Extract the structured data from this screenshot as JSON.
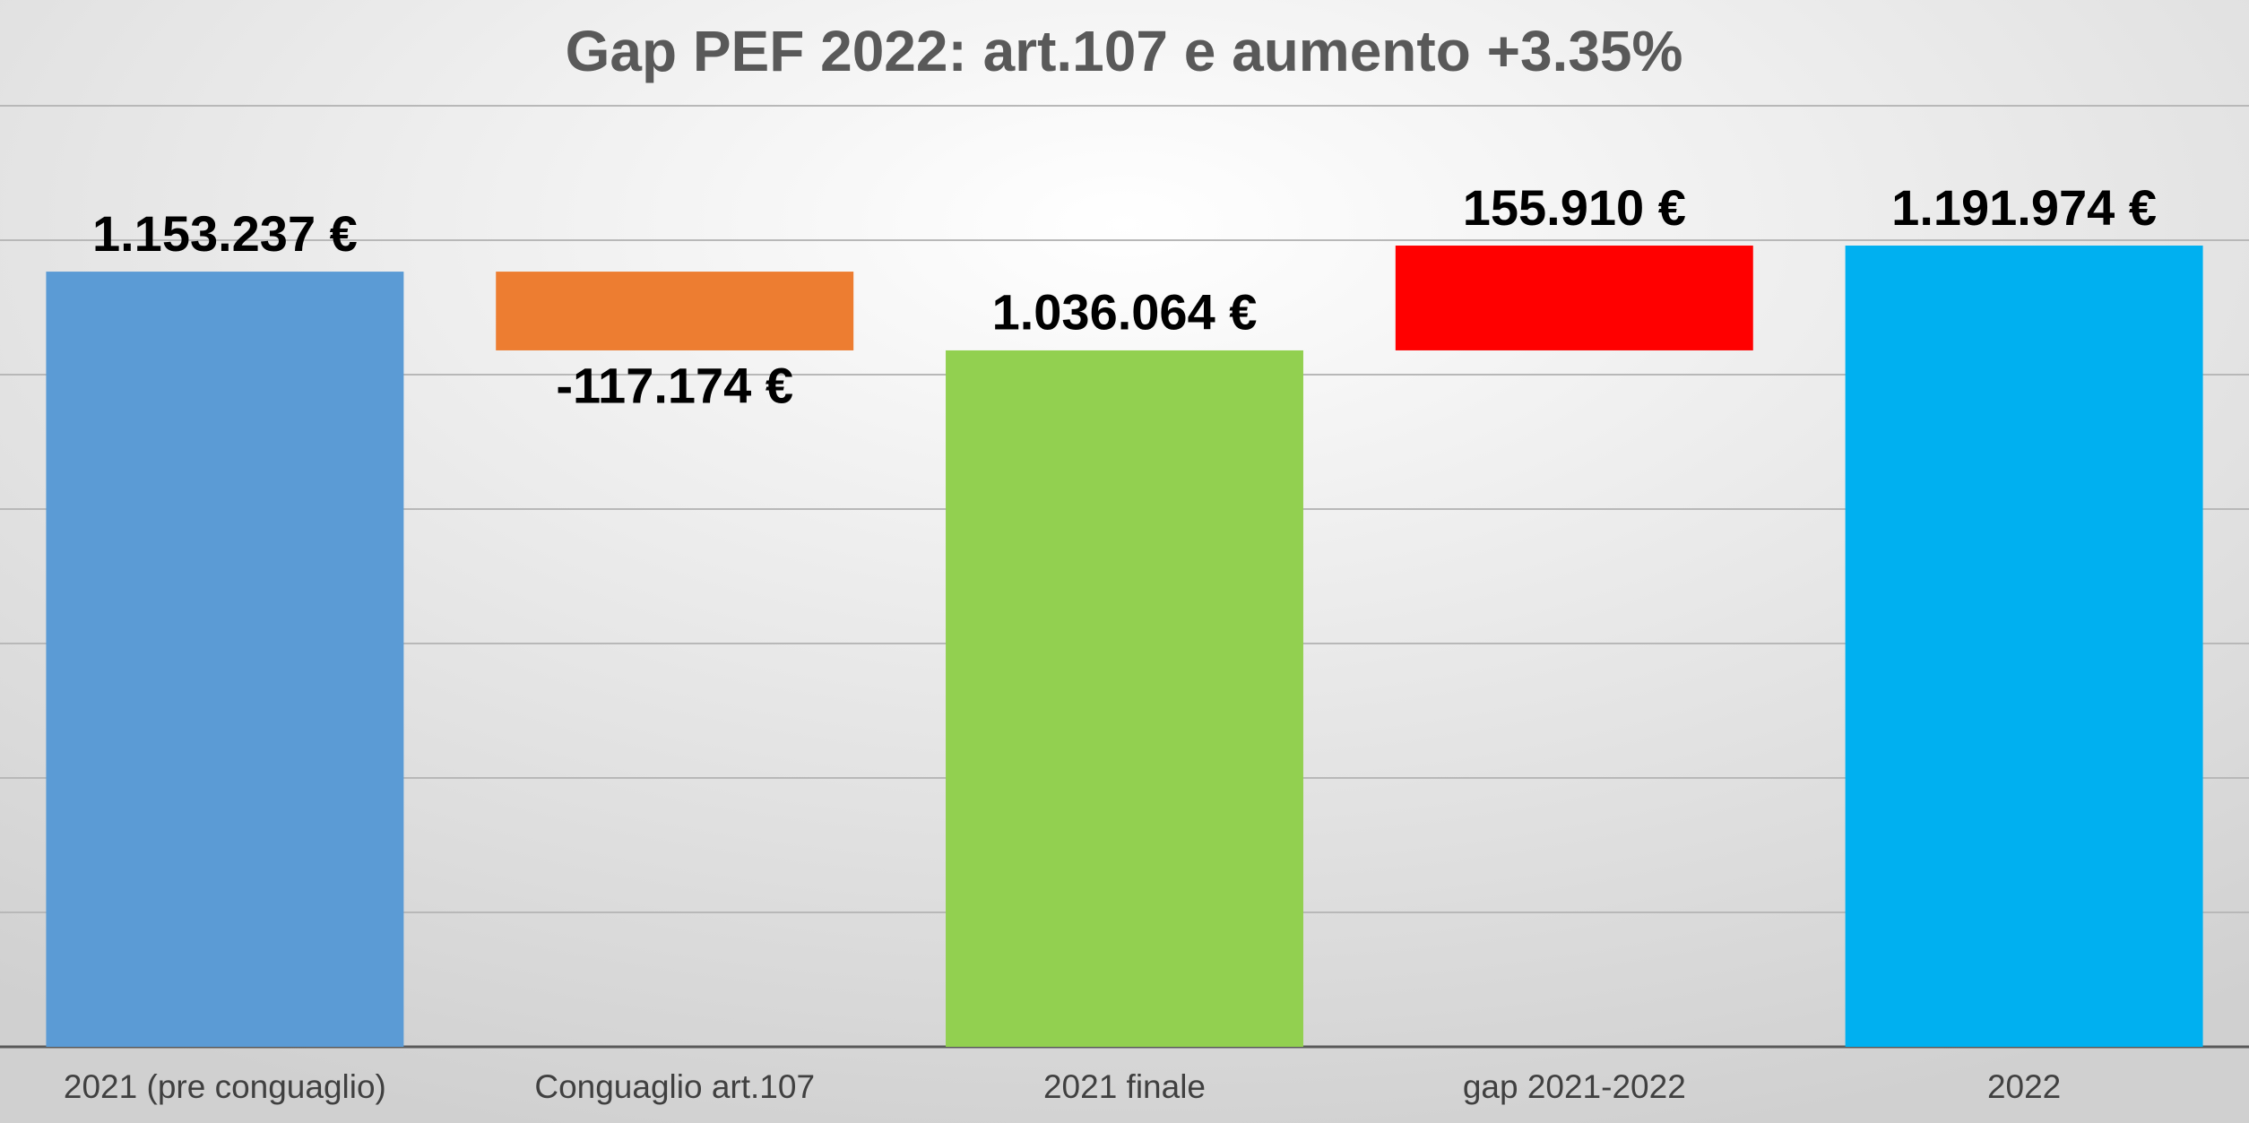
{
  "chart_data": {
    "type": "waterfall",
    "title": "Gap PEF 2022: art.107 e aumento +3.35%",
    "categories": [
      "2021 (pre conguaglio)",
      "Conguaglio art.107",
      "2021 finale",
      "gap 2021-2022",
      "2022"
    ],
    "values": [
      1153237,
      -117174,
      1036064,
      155910,
      1191974
    ],
    "value_labels": [
      "1.153.237 €",
      "-117.174 €",
      "1.036.064 €",
      "155.910 €",
      "1.191.974 €"
    ],
    "measure": [
      "absolute",
      "relative",
      "total",
      "relative",
      "total"
    ],
    "colors": [
      "#5b9bd5",
      "#ed7d31",
      "#92d050",
      "#ff0000",
      "#00b0f0"
    ],
    "ylim": [
      0,
      1400000
    ],
    "yticks": [
      0,
      200000,
      400000,
      600000,
      800000,
      1000000,
      1200000,
      1400000
    ],
    "grid": true
  }
}
